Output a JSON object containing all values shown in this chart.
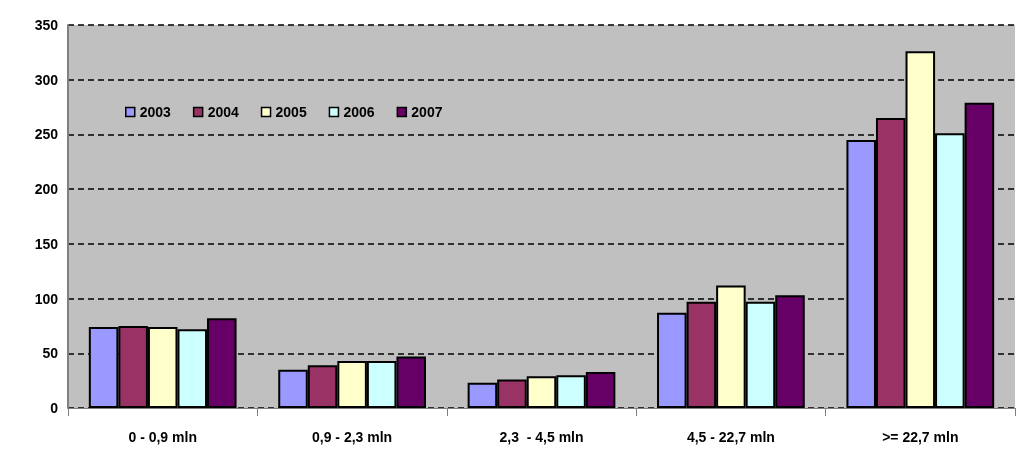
{
  "chart_data": {
    "type": "bar",
    "categories": [
      "0 - 0,9 mln",
      "0,9 - 2,3 mln",
      "2,3  - 4,5 mln",
      "4,5 - 22,7 mln",
      ">= 22,7 mln"
    ],
    "series": [
      {
        "name": "2003",
        "color": "#9999ff",
        "values": [
          74,
          35,
          23,
          87,
          245
        ]
      },
      {
        "name": "2004",
        "color": "#993366",
        "values": [
          75,
          39,
          26,
          97,
          265
        ]
      },
      {
        "name": "2005",
        "color": "#ffffcc",
        "values": [
          74,
          43,
          29,
          112,
          326
        ]
      },
      {
        "name": "2006",
        "color": "#ccffff",
        "values": [
          72,
          43,
          30,
          97,
          251
        ]
      },
      {
        "name": "2007",
        "color": "#660066",
        "values": [
          82,
          47,
          33,
          103,
          279
        ]
      }
    ],
    "ylim": [
      0,
      350
    ],
    "yticks": [
      0,
      50,
      100,
      150,
      200,
      250,
      300,
      350
    ],
    "grid": "y",
    "legend": "top left"
  }
}
